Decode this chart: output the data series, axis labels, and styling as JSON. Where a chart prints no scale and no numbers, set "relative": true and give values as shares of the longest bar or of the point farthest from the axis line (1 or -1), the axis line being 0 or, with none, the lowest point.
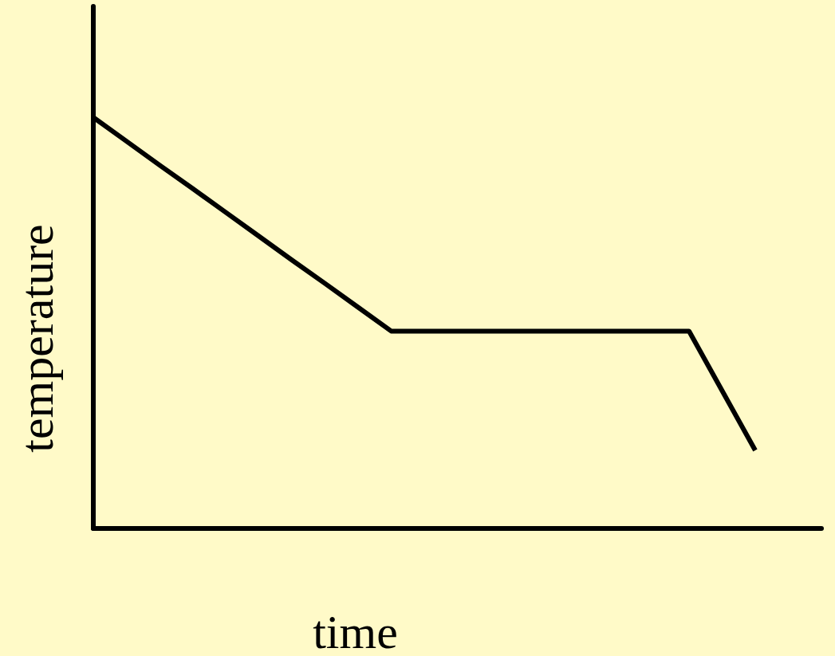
{
  "chart_data": {
    "type": "line",
    "xlabel": "time",
    "ylabel": "temperature",
    "relative": true,
    "categories": [
      null,
      null,
      null,
      null,
      null,
      null,
      null,
      null,
      null,
      null,
      null,
      null,
      null,
      null,
      null,
      null,
      null,
      null,
      null,
      null,
      null,
      null,
      null
    ],
    "values": [
      1,
      0.942,
      0.884,
      0.827,
      0.769,
      0.711,
      0.653,
      0.596,
      0.538,
      0.48,
      0.48,
      0.48,
      0.48,
      0.48,
      0.48,
      0.48,
      0.48,
      0.48,
      0.48,
      0.335,
      0.19,
      null,
      null
    ],
    "color": "#000000",
    "marker": "none",
    "line_style": "solid",
    "grid": false
  }
}
